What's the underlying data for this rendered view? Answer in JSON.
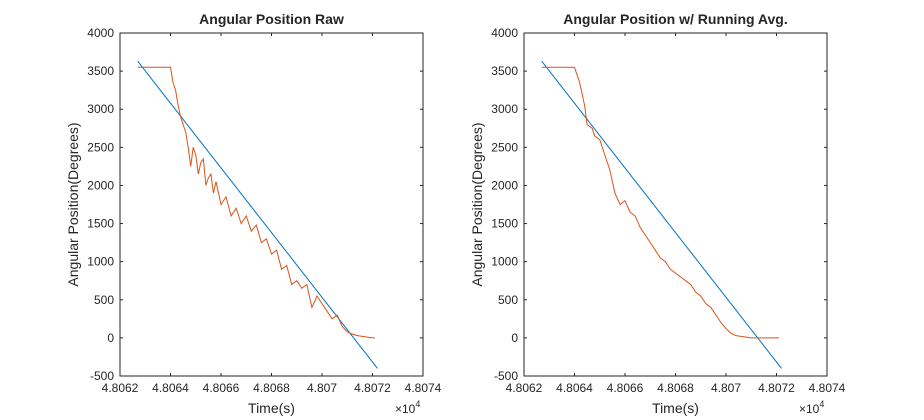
{
  "chart_data": [
    {
      "type": "line",
      "title": "Angular Position Raw",
      "xlabel": "Time(s)",
      "ylabel": "Angular Position(Degrees)",
      "x_exponent_label": "×10",
      "x_exponent_power": "4",
      "xlim": [
        4.8062,
        4.8074
      ],
      "ylim": [
        -500,
        4000
      ],
      "xticks": [
        "4.8062",
        "4.8064",
        "4.8066",
        "4.8068",
        "4.807",
        "4.8072",
        "4.8074"
      ],
      "yticks": [
        "-500",
        "0",
        "500",
        "1000",
        "1500",
        "2000",
        "2500",
        "3000",
        "3500",
        "4000"
      ],
      "grid": false,
      "series": [
        {
          "color": "#0072BD",
          "x": [
            4.80627,
            4.80722
          ],
          "y": [
            3630,
            -400
          ]
        },
        {
          "color": "#D95319",
          "x": [
            4.80627,
            4.8064,
            4.80641,
            4.80642,
            4.80643,
            4.80644,
            4.80645,
            4.80646,
            4.80647,
            4.80648,
            4.80649,
            4.8065,
            4.80651,
            4.80652,
            4.80653,
            4.80654,
            4.80655,
            4.80656,
            4.80657,
            4.80658,
            4.8066,
            4.80662,
            4.80664,
            4.80666,
            4.80668,
            4.8067,
            4.80672,
            4.80674,
            4.80676,
            4.80678,
            4.8068,
            4.80682,
            4.80684,
            4.80686,
            4.80688,
            4.8069,
            4.80692,
            4.80694,
            4.80696,
            4.80698,
            4.807,
            4.80702,
            4.80704,
            4.80706,
            4.80708,
            4.8071,
            4.80712,
            4.80714,
            4.80716,
            4.80718,
            4.8072,
            4.80721
          ],
          "y": [
            3550,
            3550,
            3350,
            3250,
            3050,
            2900,
            2800,
            2700,
            2500,
            2250,
            2500,
            2400,
            2150,
            2300,
            2350,
            2000,
            2100,
            2150,
            1900,
            2050,
            1750,
            1850,
            1600,
            1700,
            1500,
            1600,
            1400,
            1480,
            1250,
            1300,
            1100,
            1150,
            900,
            950,
            700,
            750,
            650,
            700,
            400,
            550,
            450,
            350,
            250,
            300,
            150,
            80,
            50,
            30,
            20,
            10,
            0,
            0
          ]
        }
      ]
    },
    {
      "type": "line",
      "title": "Angular Position w/ Running Avg.",
      "xlabel": "Time(s)",
      "ylabel": "Angular Position(Degrees)",
      "x_exponent_label": "×10",
      "x_exponent_power": "4",
      "xlim": [
        4.8062,
        4.8074
      ],
      "ylim": [
        -500,
        4000
      ],
      "xticks": [
        "4.8062",
        "4.8064",
        "4.8066",
        "4.8068",
        "4.807",
        "4.8072",
        "4.8074"
      ],
      "yticks": [
        "-500",
        "0",
        "500",
        "1000",
        "1500",
        "2000",
        "2500",
        "3000",
        "3500",
        "4000"
      ],
      "grid": false,
      "series": [
        {
          "color": "#0072BD",
          "x": [
            4.80627,
            4.80722
          ],
          "y": [
            3630,
            -400
          ]
        },
        {
          "color": "#D95319",
          "x": [
            4.80627,
            4.8064,
            4.80642,
            4.80644,
            4.80645,
            4.80647,
            4.80648,
            4.8065,
            4.80652,
            4.80654,
            4.80656,
            4.80658,
            4.8066,
            4.80662,
            4.80664,
            4.80666,
            4.80668,
            4.8067,
            4.80672,
            4.80674,
            4.80676,
            4.80678,
            4.8068,
            4.80682,
            4.80684,
            4.80686,
            4.80688,
            4.8069,
            4.80692,
            4.80694,
            4.80696,
            4.80698,
            4.807,
            4.80702,
            4.80704,
            4.80706,
            4.80708,
            4.8071,
            4.80712,
            4.80714,
            4.80716,
            4.80718,
            4.8072,
            4.80721
          ],
          "y": [
            3550,
            3550,
            3350,
            3050,
            2800,
            2750,
            2650,
            2600,
            2400,
            2200,
            1900,
            1750,
            1800,
            1650,
            1600,
            1450,
            1350,
            1250,
            1150,
            1050,
            1000,
            900,
            850,
            800,
            750,
            700,
            600,
            550,
            450,
            400,
            300,
            200,
            120,
            60,
            30,
            20,
            10,
            0,
            0,
            0,
            0,
            0,
            0,
            0
          ]
        }
      ]
    }
  ]
}
